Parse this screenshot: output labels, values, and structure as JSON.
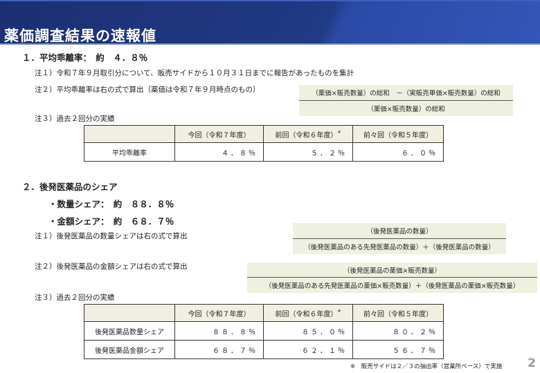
{
  "header": {
    "title": "薬価調査結果の速報値"
  },
  "section1": {
    "heading": "１．平均乖離率：　約　４．８％",
    "note1": "注１）令和７年９月取引分について、販売サイドから１０月３１日までに報告があったものを集計",
    "note2": "注２）平均乖離率は右の式で算出（薬価は令和７年９月時点のもの）",
    "formula": {
      "numerator": "（薬価×販売数量）の総和　－（実販売単価×販売数量）の総和",
      "denominator": "（薬価×販売数量）の総和"
    },
    "note3": "注３）過去２回分の実績",
    "table": {
      "headers": [
        "",
        "今回（令和７年度）",
        "前回（令和６年度）",
        "前々回（令和５年度）"
      ],
      "header_mark": "※",
      "rows": [
        {
          "label": "平均乖離率",
          "values": [
            "４．８％",
            "５．２％",
            "６．０％"
          ]
        }
      ]
    }
  },
  "section2": {
    "heading": "２．後発医薬品のシェア",
    "volume_share": "・数量シェア：　約　８８．８％",
    "value_share": "・金額シェア：　約　６８．７％",
    "note1": "注１）後発医薬品の数量シェアは右の式で算出",
    "formula1": {
      "numerator": "（後発医薬品の数量）",
      "denominator": "（後発医薬品のある先発医薬品の数量）＋（後発医薬品の数量）"
    },
    "note2": "注２）後発医薬品の金額シェアは右の式で算出",
    "formula2": {
      "numerator": "（後発医薬品の薬価×販売数量）",
      "denominator": "（後発医薬品のある先発医薬品の薬価×販売数量）＋（後発医薬品の薬価×販売数量）"
    },
    "note3": "注３）過去２回分の実績",
    "table": {
      "headers": [
        "",
        "今回（令和７年度）",
        "前回（令和６年度）",
        "前々回（令和５年度）"
      ],
      "header_mark": "※",
      "rows": [
        {
          "label": "後発医薬品数量シェア",
          "values": [
            "８８．８％",
            "８５．０％",
            "８０．２％"
          ]
        },
        {
          "label": "後発医薬品金額シェア",
          "values": [
            "６８．７％",
            "６２．１％",
            "５６．７％"
          ]
        }
      ]
    }
  },
  "footnote": "※　販売サイドは２／３の抽出率（営業所ベース）で実施",
  "page_number": "2"
}
